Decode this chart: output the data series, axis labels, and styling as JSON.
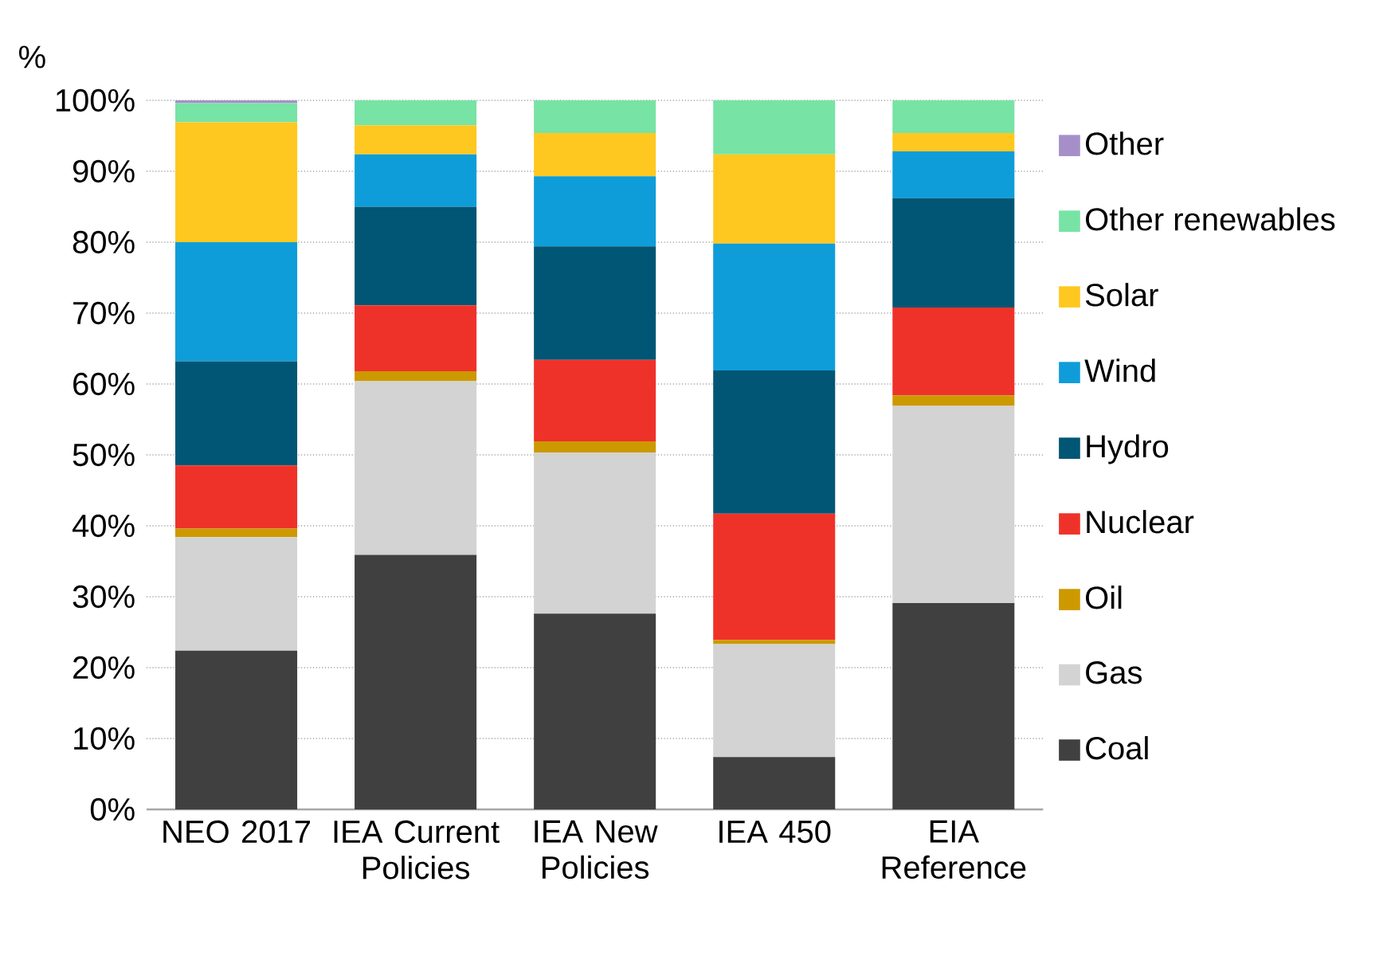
{
  "chart_data": {
    "type": "bar",
    "stacked": true,
    "ylabel": "%",
    "categories": [
      "NEO 2017",
      "IEA Current Policies",
      "IEA New Policies",
      "IEA 450",
      "EIA Reference"
    ],
    "series": [
      {
        "name": "Coal",
        "color": "#404040",
        "values": [
          22.4,
          35.9,
          27.6,
          7.4,
          29.1
        ]
      },
      {
        "name": "Gas",
        "color": "#d3d3d3",
        "values": [
          16.0,
          24.5,
          22.7,
          15.9,
          27.8
        ]
      },
      {
        "name": "Oil",
        "color": "#cc9900",
        "values": [
          1.2,
          1.4,
          1.6,
          0.6,
          1.5
        ]
      },
      {
        "name": "Nuclear",
        "color": "#ef3229",
        "values": [
          8.9,
          9.3,
          11.5,
          17.8,
          12.4
        ]
      },
      {
        "name": "Hydro",
        "color": "#005674",
        "values": [
          14.7,
          13.9,
          16.0,
          20.2,
          15.4
        ]
      },
      {
        "name": "Wind",
        "color": "#0e9dd9",
        "values": [
          16.8,
          7.4,
          9.9,
          17.9,
          6.6
        ]
      },
      {
        "name": "Solar",
        "color": "#ffc820",
        "values": [
          16.9,
          4.1,
          6.1,
          12.6,
          2.6
        ]
      },
      {
        "name": "Other renewables",
        "color": "#77e3a4",
        "values": [
          2.7,
          3.5,
          4.6,
          7.6,
          4.6
        ]
      },
      {
        "name": "Other",
        "color": "#a68fc9",
        "values": [
          0.4,
          0,
          0,
          0,
          0
        ]
      }
    ],
    "ylim": [
      0,
      100
    ],
    "yticks": [
      {
        "value": 0,
        "label": "0%"
      },
      {
        "value": 10,
        "label": "10%"
      },
      {
        "value": 20,
        "label": "20%"
      },
      {
        "value": 30,
        "label": "30%"
      },
      {
        "value": 40,
        "label": "40%"
      },
      {
        "value": 50,
        "label": "50%"
      },
      {
        "value": 60,
        "label": "60%"
      },
      {
        "value": 70,
        "label": "70%"
      },
      {
        "value": 80,
        "label": "80%"
      },
      {
        "value": 90,
        "label": "90%"
      },
      {
        "value": 100,
        "label": "100%"
      }
    ],
    "grid": "y",
    "legend": "right"
  }
}
